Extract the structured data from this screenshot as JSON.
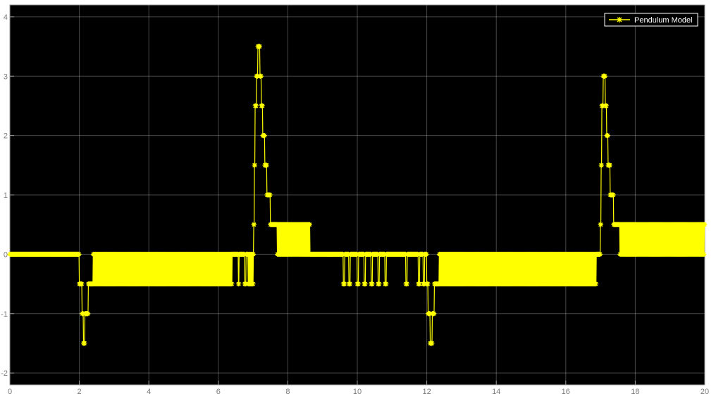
{
  "chart_data": {
    "type": "line",
    "title": "",
    "xlabel": "",
    "ylabel": "",
    "xlim": [
      0,
      20
    ],
    "ylim": [
      -2.2,
      4.2
    ],
    "grid": true,
    "legend_position": "top-right",
    "background_color": "#000000",
    "grid_color": "#ffffff",
    "axis_color": "#9a9a9a",
    "line_color": "#ffff00",
    "marker": "asterisk",
    "x_ticks": [
      0,
      2,
      4,
      6,
      8,
      10,
      12,
      14,
      16,
      18,
      20
    ],
    "y_ticks": [
      -2,
      -1,
      0,
      1,
      2,
      3,
      4
    ],
    "x_tick_labels": [
      "0",
      "2",
      "4",
      "6",
      "8",
      "10",
      "12",
      "14",
      "16",
      "18",
      "20"
    ],
    "y_tick_labels": [
      "-2",
      "-1",
      "0",
      "1",
      "2",
      "3",
      "4"
    ],
    "series": [
      {
        "name": "Pendulum Model",
        "color": "#ffff00",
        "sample_step": 0.01,
        "segments": [
          {
            "x_start": 0.0,
            "x_end": 2.0,
            "pattern": "constant",
            "values": [
              0
            ]
          },
          {
            "x_start": 2.0,
            "x_end": 2.08,
            "pattern": "constant",
            "values": [
              -0.5
            ]
          },
          {
            "x_start": 2.08,
            "x_end": 2.12,
            "pattern": "constant",
            "values": [
              -1.0
            ]
          },
          {
            "x_start": 2.12,
            "x_end": 2.16,
            "pattern": "constant",
            "values": [
              -1.5
            ]
          },
          {
            "x_start": 2.16,
            "x_end": 2.26,
            "pattern": "constant",
            "values": [
              -1.0
            ]
          },
          {
            "x_start": 2.26,
            "x_end": 2.4,
            "pattern": "constant",
            "values": [
              -0.5
            ]
          },
          {
            "x_start": 2.4,
            "x_end": 6.4,
            "pattern": "alternate",
            "values": [
              0,
              -0.5
            ]
          },
          {
            "x_start": 6.4,
            "x_end": 6.58,
            "pattern": "constant",
            "values": [
              0
            ]
          },
          {
            "x_start": 6.58,
            "x_end": 6.6,
            "pattern": "constant",
            "values": [
              -0.5
            ]
          },
          {
            "x_start": 6.6,
            "x_end": 6.76,
            "pattern": "constant",
            "values": [
              0
            ]
          },
          {
            "x_start": 6.76,
            "x_end": 6.8,
            "pattern": "constant",
            "values": [
              -0.5
            ]
          },
          {
            "x_start": 6.8,
            "x_end": 6.86,
            "pattern": "constant",
            "values": [
              0
            ]
          },
          {
            "x_start": 6.86,
            "x_end": 7.02,
            "pattern": "alternate",
            "values": [
              -0.5,
              0
            ]
          },
          {
            "x_start": 7.02,
            "x_end": 7.04,
            "pattern": "constant",
            "values": [
              0.5
            ]
          },
          {
            "x_start": 7.04,
            "x_end": 7.06,
            "pattern": "constant",
            "values": [
              1.5
            ]
          },
          {
            "x_start": 7.06,
            "x_end": 7.1,
            "pattern": "constant",
            "values": [
              2.5
            ]
          },
          {
            "x_start": 7.1,
            "x_end": 7.14,
            "pattern": "constant",
            "values": [
              3.0
            ]
          },
          {
            "x_start": 7.14,
            "x_end": 7.2,
            "pattern": "constant",
            "values": [
              3.5
            ]
          },
          {
            "x_start": 7.2,
            "x_end": 7.24,
            "pattern": "constant",
            "values": [
              3.0
            ]
          },
          {
            "x_start": 7.24,
            "x_end": 7.28,
            "pattern": "constant",
            "values": [
              2.5
            ]
          },
          {
            "x_start": 7.28,
            "x_end": 7.34,
            "pattern": "constant",
            "values": [
              2.0
            ]
          },
          {
            "x_start": 7.34,
            "x_end": 7.4,
            "pattern": "constant",
            "values": [
              1.5
            ]
          },
          {
            "x_start": 7.4,
            "x_end": 7.5,
            "pattern": "constant",
            "values": [
              1.0
            ]
          },
          {
            "x_start": 7.5,
            "x_end": 7.7,
            "pattern": "constant",
            "values": [
              0.5
            ]
          },
          {
            "x_start": 7.7,
            "x_end": 8.64,
            "pattern": "alternate",
            "values": [
              0,
              0.5
            ]
          },
          {
            "x_start": 8.64,
            "x_end": 9.6,
            "pattern": "constant",
            "values": [
              0
            ]
          },
          {
            "x_start": 9.6,
            "x_end": 9.64,
            "pattern": "constant",
            "values": [
              -0.5
            ]
          },
          {
            "x_start": 9.64,
            "x_end": 9.76,
            "pattern": "constant",
            "values": [
              0
            ]
          },
          {
            "x_start": 9.76,
            "x_end": 9.8,
            "pattern": "constant",
            "values": [
              -0.5
            ]
          },
          {
            "x_start": 9.8,
            "x_end": 10.0,
            "pattern": "constant",
            "values": [
              0
            ]
          },
          {
            "x_start": 10.0,
            "x_end": 10.04,
            "pattern": "constant",
            "values": [
              -0.5
            ]
          },
          {
            "x_start": 10.04,
            "x_end": 10.2,
            "pattern": "constant",
            "values": [
              0
            ]
          },
          {
            "x_start": 10.2,
            "x_end": 10.24,
            "pattern": "constant",
            "values": [
              -0.5
            ]
          },
          {
            "x_start": 10.24,
            "x_end": 10.4,
            "pattern": "constant",
            "values": [
              0
            ]
          },
          {
            "x_start": 10.4,
            "x_end": 10.44,
            "pattern": "constant",
            "values": [
              -0.5
            ]
          },
          {
            "x_start": 10.44,
            "x_end": 10.6,
            "pattern": "constant",
            "values": [
              0
            ]
          },
          {
            "x_start": 10.6,
            "x_end": 10.64,
            "pattern": "constant",
            "values": [
              -0.5
            ]
          },
          {
            "x_start": 10.64,
            "x_end": 10.8,
            "pattern": "constant",
            "values": [
              0
            ]
          },
          {
            "x_start": 10.8,
            "x_end": 10.84,
            "pattern": "constant",
            "values": [
              -0.5
            ]
          },
          {
            "x_start": 10.84,
            "x_end": 11.4,
            "pattern": "constant",
            "values": [
              0
            ]
          },
          {
            "x_start": 11.4,
            "x_end": 11.44,
            "pattern": "constant",
            "values": [
              -0.5
            ]
          },
          {
            "x_start": 11.44,
            "x_end": 11.76,
            "pattern": "constant",
            "values": [
              0
            ]
          },
          {
            "x_start": 11.76,
            "x_end": 11.8,
            "pattern": "constant",
            "values": [
              -0.5
            ]
          },
          {
            "x_start": 11.8,
            "x_end": 11.9,
            "pattern": "constant",
            "values": [
              0
            ]
          },
          {
            "x_start": 11.9,
            "x_end": 11.94,
            "pattern": "constant",
            "values": [
              -0.5
            ]
          },
          {
            "x_start": 11.94,
            "x_end": 12.0,
            "pattern": "constant",
            "values": [
              0
            ]
          },
          {
            "x_start": 12.0,
            "x_end": 12.04,
            "pattern": "constant",
            "values": [
              -0.5
            ]
          },
          {
            "x_start": 12.04,
            "x_end": 12.1,
            "pattern": "constant",
            "values": [
              -1.0
            ]
          },
          {
            "x_start": 12.1,
            "x_end": 12.16,
            "pattern": "constant",
            "values": [
              -1.5
            ]
          },
          {
            "x_start": 12.16,
            "x_end": 12.22,
            "pattern": "constant",
            "values": [
              -1.0
            ]
          },
          {
            "x_start": 12.22,
            "x_end": 12.36,
            "pattern": "constant",
            "values": [
              -0.5
            ]
          },
          {
            "x_start": 12.36,
            "x_end": 16.88,
            "pattern": "alternate",
            "values": [
              0,
              -0.5
            ]
          },
          {
            "x_start": 16.88,
            "x_end": 17.0,
            "pattern": "constant",
            "values": [
              0
            ]
          },
          {
            "x_start": 17.0,
            "x_end": 17.02,
            "pattern": "constant",
            "values": [
              0.5
            ]
          },
          {
            "x_start": 17.02,
            "x_end": 17.04,
            "pattern": "constant",
            "values": [
              1.5
            ]
          },
          {
            "x_start": 17.04,
            "x_end": 17.08,
            "pattern": "constant",
            "values": [
              2.5
            ]
          },
          {
            "x_start": 17.08,
            "x_end": 17.14,
            "pattern": "constant",
            "values": [
              3.0
            ]
          },
          {
            "x_start": 17.14,
            "x_end": 17.18,
            "pattern": "constant",
            "values": [
              2.5
            ]
          },
          {
            "x_start": 17.18,
            "x_end": 17.22,
            "pattern": "constant",
            "values": [
              2.0
            ]
          },
          {
            "x_start": 17.22,
            "x_end": 17.28,
            "pattern": "constant",
            "values": [
              1.5
            ]
          },
          {
            "x_start": 17.28,
            "x_end": 17.38,
            "pattern": "constant",
            "values": [
              1.0
            ]
          },
          {
            "x_start": 17.38,
            "x_end": 17.56,
            "pattern": "constant",
            "values": [
              0.5
            ]
          },
          {
            "x_start": 17.56,
            "x_end": 20.0,
            "pattern": "alternate",
            "values": [
              0,
              0.5
            ]
          }
        ]
      }
    ]
  }
}
